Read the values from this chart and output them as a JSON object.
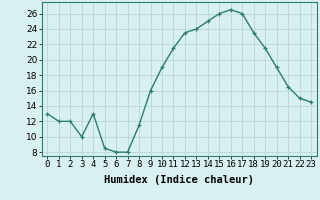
{
  "x": [
    0,
    1,
    2,
    3,
    4,
    5,
    6,
    7,
    8,
    9,
    10,
    11,
    12,
    13,
    14,
    15,
    16,
    17,
    18,
    19,
    20,
    21,
    22,
    23
  ],
  "y": [
    13,
    12,
    12,
    10,
    13,
    8.5,
    8,
    8,
    11.5,
    16,
    19,
    21.5,
    23.5,
    24,
    25,
    26,
    26.5,
    26,
    23.5,
    21.5,
    19,
    16.5,
    15,
    14.5
  ],
  "line_color": "#2e7d6e",
  "marker": "+",
  "bg_color": "#d8f0f0",
  "grid_color": "#b8d8d8",
  "xlabel": "Humidex (Indice chaleur)",
  "ylabel_ticks": [
    8,
    10,
    12,
    14,
    16,
    18,
    20,
    22,
    24,
    26
  ],
  "ylim": [
    7.5,
    27.5
  ],
  "xlim": [
    -0.5,
    23.5
  ],
  "xtick_labels": [
    "0",
    "1",
    "2",
    "3",
    "4",
    "5",
    "6",
    "7",
    "8",
    "9",
    "10",
    "11",
    "12",
    "13",
    "14",
    "15",
    "16",
    "17",
    "18",
    "19",
    "20",
    "21",
    "22",
    "23"
  ],
  "xlabel_fontsize": 7.5,
  "tick_fontsize": 6.5
}
